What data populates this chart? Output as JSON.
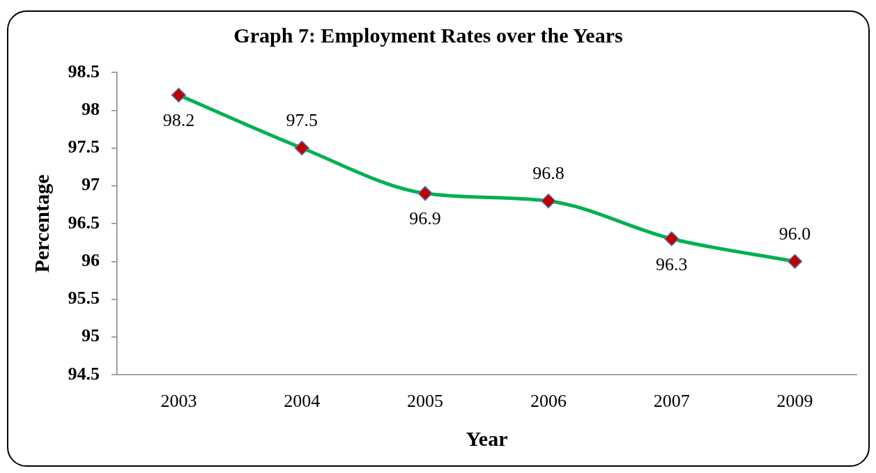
{
  "chart_data": {
    "type": "line",
    "title": "Graph 7: Employment Rates over the Years",
    "xlabel": "Year",
    "ylabel": "Percentage",
    "categories": [
      "2003",
      "2004",
      "2005",
      "2006",
      "2007",
      "2009"
    ],
    "series": [
      {
        "color": "#00b050",
        "colors": [
          "#c00000",
          "#c00000",
          "#c00000",
          "#c00000",
          "#c00000",
          "#c00000"
        ],
        "values": [
          98.2,
          97.5,
          96.9,
          96.8,
          96.3,
          96.0
        ],
        "value_labels": [
          "98.2",
          "97.5",
          "96.9",
          "96.8",
          "96.3",
          "96.0"
        ]
      }
    ],
    "ylim": [
      94.5,
      98.5
    ],
    "yticks": [
      94.5,
      95,
      95.5,
      96,
      96.5,
      97,
      97.5,
      98,
      98.5
    ],
    "marker": "diamond",
    "line_style": "solid"
  }
}
